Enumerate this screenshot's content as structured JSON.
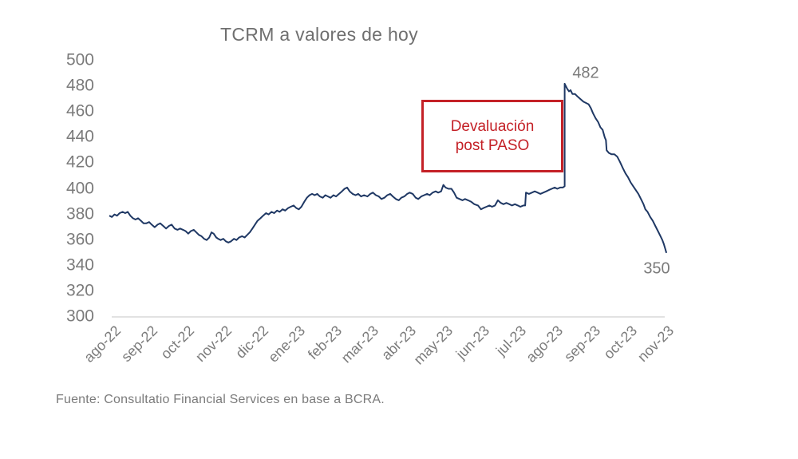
{
  "source": "Fuente: Consultatio Financial Services en base a BCRA.",
  "annotation": {
    "line1": "Devaluación",
    "line2": "post PASO"
  },
  "colors": {
    "line": "#1f3864",
    "axis": "#d9d9d9",
    "text_gray": "#7b7b7b",
    "annotation_red": "#c42127",
    "background": "#ffffff"
  },
  "chart_data": {
    "type": "line",
    "title": "TCRM a valores de hoy",
    "xlabel": "",
    "ylabel": "",
    "ylim": [
      300,
      500
    ],
    "y_ticks": [
      500,
      480,
      460,
      440,
      420,
      400,
      380,
      360,
      340,
      320,
      300
    ],
    "grid": false,
    "legend": "none",
    "categories": [
      "ago-22",
      "sep-22",
      "oct-22",
      "nov-22",
      "dic-22",
      "ene-23",
      "feb-23",
      "mar-23",
      "abr-23",
      "may-23",
      "jun-23",
      "jul-23",
      "ago-23",
      "sep-23",
      "oct-23",
      "nov-23"
    ],
    "peak_label": "482",
    "end_label": "350",
    "series": [
      {
        "name": "TCRM",
        "points": [
          [
            0.0,
            379
          ],
          [
            0.07,
            378
          ],
          [
            0.14,
            380
          ],
          [
            0.21,
            379
          ],
          [
            0.28,
            381
          ],
          [
            0.36,
            382
          ],
          [
            0.43,
            381
          ],
          [
            0.5,
            382
          ],
          [
            0.57,
            379
          ],
          [
            0.64,
            377
          ],
          [
            0.71,
            376
          ],
          [
            0.78,
            377
          ],
          [
            0.86,
            375
          ],
          [
            0.93,
            373
          ],
          [
            1.0,
            373
          ],
          [
            1.08,
            374
          ],
          [
            1.15,
            372
          ],
          [
            1.23,
            370
          ],
          [
            1.31,
            372
          ],
          [
            1.38,
            373
          ],
          [
            1.46,
            371
          ],
          [
            1.54,
            369
          ],
          [
            1.62,
            371
          ],
          [
            1.69,
            372
          ],
          [
            1.77,
            369
          ],
          [
            1.85,
            368
          ],
          [
            1.92,
            369
          ],
          [
            2.0,
            368
          ],
          [
            2.07,
            367
          ],
          [
            2.14,
            365
          ],
          [
            2.21,
            367
          ],
          [
            2.29,
            368
          ],
          [
            2.36,
            366
          ],
          [
            2.43,
            364
          ],
          [
            2.5,
            363
          ],
          [
            2.57,
            361
          ],
          [
            2.64,
            360
          ],
          [
            2.71,
            362
          ],
          [
            2.77,
            366
          ],
          [
            2.83,
            365
          ],
          [
            2.9,
            362
          ],
          [
            2.95,
            361
          ],
          [
            3.02,
            360
          ],
          [
            3.09,
            361
          ],
          [
            3.16,
            359
          ],
          [
            3.23,
            358
          ],
          [
            3.3,
            359
          ],
          [
            3.38,
            361
          ],
          [
            3.45,
            360
          ],
          [
            3.52,
            362
          ],
          [
            3.6,
            363
          ],
          [
            3.67,
            362
          ],
          [
            3.74,
            364
          ],
          [
            3.81,
            366
          ],
          [
            3.88,
            369
          ],
          [
            3.95,
            372
          ],
          [
            4.02,
            375
          ],
          [
            4.1,
            377
          ],
          [
            4.17,
            379
          ],
          [
            4.25,
            381
          ],
          [
            4.32,
            380
          ],
          [
            4.4,
            382
          ],
          [
            4.47,
            381
          ],
          [
            4.55,
            383
          ],
          [
            4.62,
            382
          ],
          [
            4.7,
            384
          ],
          [
            4.77,
            383
          ],
          [
            4.85,
            385
          ],
          [
            4.92,
            386
          ],
          [
            5.0,
            387
          ],
          [
            5.07,
            385
          ],
          [
            5.14,
            384
          ],
          [
            5.21,
            386
          ],
          [
            5.29,
            390
          ],
          [
            5.36,
            393
          ],
          [
            5.43,
            395
          ],
          [
            5.5,
            396
          ],
          [
            5.57,
            395
          ],
          [
            5.64,
            396
          ],
          [
            5.71,
            394
          ],
          [
            5.79,
            393
          ],
          [
            5.86,
            395
          ],
          [
            5.93,
            394
          ],
          [
            6.0,
            393
          ],
          [
            6.08,
            395
          ],
          [
            6.15,
            394
          ],
          [
            6.23,
            396
          ],
          [
            6.31,
            398
          ],
          [
            6.38,
            400
          ],
          [
            6.45,
            401
          ],
          [
            6.52,
            398
          ],
          [
            6.6,
            396
          ],
          [
            6.68,
            395
          ],
          [
            6.75,
            396
          ],
          [
            6.83,
            394
          ],
          [
            6.91,
            395
          ],
          [
            7.0,
            394
          ],
          [
            7.08,
            396
          ],
          [
            7.15,
            397
          ],
          [
            7.23,
            395
          ],
          [
            7.31,
            394
          ],
          [
            7.38,
            392
          ],
          [
            7.46,
            393
          ],
          [
            7.54,
            395
          ],
          [
            7.62,
            396
          ],
          [
            7.69,
            394
          ],
          [
            7.77,
            392
          ],
          [
            7.85,
            391
          ],
          [
            7.92,
            393
          ],
          [
            8.0,
            394
          ],
          [
            8.08,
            396
          ],
          [
            8.15,
            397
          ],
          [
            8.23,
            396
          ],
          [
            8.31,
            393
          ],
          [
            8.38,
            392
          ],
          [
            8.46,
            394
          ],
          [
            8.54,
            395
          ],
          [
            8.62,
            396
          ],
          [
            8.69,
            395
          ],
          [
            8.77,
            397
          ],
          [
            8.85,
            398
          ],
          [
            8.92,
            397
          ],
          [
            9.0,
            398
          ],
          [
            9.06,
            403
          ],
          [
            9.12,
            401
          ],
          [
            9.2,
            400
          ],
          [
            9.28,
            400
          ],
          [
            9.35,
            397
          ],
          [
            9.42,
            393
          ],
          [
            9.5,
            392
          ],
          [
            9.58,
            391
          ],
          [
            9.65,
            392
          ],
          [
            9.73,
            391
          ],
          [
            9.81,
            390
          ],
          [
            9.9,
            388
          ],
          [
            10.0,
            387
          ],
          [
            10.08,
            384
          ],
          [
            10.15,
            385
          ],
          [
            10.23,
            386
          ],
          [
            10.31,
            387
          ],
          [
            10.38,
            386
          ],
          [
            10.46,
            387
          ],
          [
            10.54,
            391
          ],
          [
            10.62,
            389
          ],
          [
            10.69,
            388
          ],
          [
            10.77,
            389
          ],
          [
            10.85,
            388
          ],
          [
            10.92,
            387
          ],
          [
            11.0,
            388
          ],
          [
            11.08,
            387
          ],
          [
            11.15,
            386
          ],
          [
            11.23,
            387
          ],
          [
            11.28,
            387
          ],
          [
            11.3,
            397
          ],
          [
            11.38,
            396
          ],
          [
            11.46,
            397
          ],
          [
            11.54,
            398
          ],
          [
            11.62,
            397
          ],
          [
            11.69,
            396
          ],
          [
            11.77,
            397
          ],
          [
            11.85,
            398
          ],
          [
            11.92,
            399
          ],
          [
            12.0,
            400
          ],
          [
            12.08,
            401
          ],
          [
            12.15,
            400
          ],
          [
            12.23,
            401
          ],
          [
            12.3,
            401
          ],
          [
            12.35,
            402
          ],
          [
            12.35,
            482
          ],
          [
            12.42,
            478
          ],
          [
            12.47,
            476
          ],
          [
            12.51,
            477
          ],
          [
            12.56,
            474
          ],
          [
            12.63,
            474
          ],
          [
            12.7,
            472
          ],
          [
            12.78,
            470
          ],
          [
            12.86,
            468
          ],
          [
            12.93,
            467
          ],
          [
            13.0,
            466
          ],
          [
            13.06,
            463
          ],
          [
            13.12,
            459
          ],
          [
            13.19,
            455
          ],
          [
            13.26,
            452
          ],
          [
            13.32,
            448
          ],
          [
            13.38,
            446
          ],
          [
            13.44,
            440
          ],
          [
            13.47,
            438
          ],
          [
            13.49,
            430
          ],
          [
            13.55,
            428
          ],
          [
            13.62,
            427
          ],
          [
            13.7,
            427
          ],
          [
            13.78,
            425
          ],
          [
            13.85,
            421
          ],
          [
            13.93,
            416
          ],
          [
            14.0,
            412
          ],
          [
            14.07,
            409
          ],
          [
            14.14,
            405
          ],
          [
            14.21,
            402
          ],
          [
            14.28,
            399
          ],
          [
            14.35,
            396
          ],
          [
            14.42,
            392
          ],
          [
            14.49,
            388
          ],
          [
            14.54,
            384
          ],
          [
            14.6,
            382
          ],
          [
            14.67,
            378
          ],
          [
            14.74,
            375
          ],
          [
            14.81,
            371
          ],
          [
            14.88,
            367
          ],
          [
            14.95,
            363
          ],
          [
            15.0,
            360
          ],
          [
            15.04,
            357
          ],
          [
            15.08,
            353
          ],
          [
            15.11,
            350
          ]
        ]
      }
    ]
  }
}
